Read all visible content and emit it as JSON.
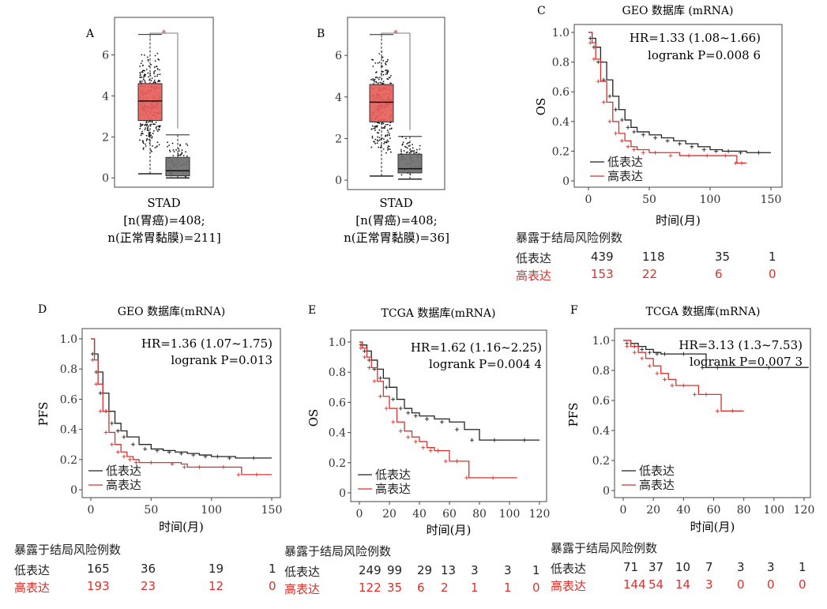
{
  "colors": {
    "tumor": "#e8605c",
    "normal": "#6e6e6e",
    "low": "#222222",
    "high": "#d9312b"
  },
  "chart_data": [
    {
      "panel": "A",
      "type": "box",
      "categories": [
        "",
        ""
      ],
      "series": [
        {
          "values": {
            "whisker_low": 0.2,
            "q1": 2.8,
            "median": 3.75,
            "q3": 4.6,
            "whisker_high": 7.0
          }
        },
        {
          "values": {
            "whisker_low": 0.0,
            "q1": 0.1,
            "median": 0.35,
            "q3": 1.0,
            "whisker_high": 2.1
          }
        }
      ],
      "significance": "*",
      "yticks": [
        "0",
        "2",
        "4",
        "6"
      ],
      "ylim": [
        -0.3,
        7.6
      ],
      "xlabel": "STAD",
      "caption_lines": [
        "[n(胃癌)=408;",
        "n(正常胃黏膜)=211]"
      ]
    },
    {
      "panel": "B",
      "type": "box",
      "categories": [
        "",
        ""
      ],
      "series": [
        {
          "values": {
            "whisker_low": 0.2,
            "q1": 2.8,
            "median": 3.75,
            "q3": 4.6,
            "whisker_high": 7.0
          }
        },
        {
          "values": {
            "whisker_low": 0.05,
            "q1": 0.35,
            "median": 0.55,
            "q3": 1.25,
            "whisker_high": 2.1
          }
        }
      ],
      "significance": "*",
      "yticks": [
        "0",
        "2",
        "4",
        "6"
      ],
      "ylim": [
        -0.3,
        7.6
      ],
      "xlabel": "STAD",
      "caption_lines": [
        "[n(胃癌)=408;",
        "n(正常胃黏膜)=36]"
      ]
    },
    {
      "panel": "C",
      "type": "line",
      "title": "GEO 数据库 (mRNA)",
      "ylabel": "OS",
      "xlabel": "时间(月)",
      "xticks": [
        "0",
        "50",
        "100",
        "150"
      ],
      "yticks": [
        "0",
        "0.2",
        "0.4",
        "0.6",
        "0.8",
        "1.0"
      ],
      "xlim": [
        0,
        150
      ],
      "ylim": [
        0,
        1
      ],
      "hr_text": "HR=1.33 (1.08~1.66)",
      "p_text": "logrank P=0.008 6",
      "series": [
        {
          "name": "低表达",
          "points": [
            [
              0,
              1
            ],
            [
              3,
              0.96
            ],
            [
              6,
              0.9
            ],
            [
              10,
              0.8
            ],
            [
              15,
              0.68
            ],
            [
              20,
              0.57
            ],
            [
              25,
              0.48
            ],
            [
              30,
              0.41
            ],
            [
              35,
              0.36
            ],
            [
              40,
              0.33
            ],
            [
              50,
              0.31
            ],
            [
              60,
              0.29
            ],
            [
              70,
              0.27
            ],
            [
              80,
              0.25
            ],
            [
              90,
              0.23
            ],
            [
              100,
              0.21
            ],
            [
              110,
              0.2
            ],
            [
              120,
              0.2
            ],
            [
              130,
              0.19
            ],
            [
              150,
              0.19
            ]
          ]
        },
        {
          "name": "高表达",
          "points": [
            [
              0,
              1
            ],
            [
              3,
              0.93
            ],
            [
              6,
              0.82
            ],
            [
              10,
              0.67
            ],
            [
              15,
              0.53
            ],
            [
              20,
              0.4
            ],
            [
              25,
              0.32
            ],
            [
              30,
              0.27
            ],
            [
              35,
              0.23
            ],
            [
              40,
              0.21
            ],
            [
              50,
              0.19
            ],
            [
              60,
              0.19
            ],
            [
              75,
              0.17
            ],
            [
              90,
              0.17
            ],
            [
              105,
              0.17
            ],
            [
              120,
              0.17
            ],
            [
              122,
              0.12
            ],
            [
              130,
              0.12
            ]
          ]
        }
      ],
      "risk_title": "暴露于结局风险例数",
      "risk_rows": [
        {
          "label": "低表达",
          "values": [
            "439",
            "118",
            "35",
            "1"
          ]
        },
        {
          "label": "高表达",
          "values": [
            "153",
            "22",
            "6",
            "0"
          ]
        }
      ]
    },
    {
      "panel": "D",
      "type": "line",
      "title": "GEO 数据库(mRNA)",
      "ylabel": "PFS",
      "xlabel": "时间(月)",
      "xticks": [
        "0",
        "50",
        "100",
        "150"
      ],
      "yticks": [
        "0",
        "0.2",
        "0.4",
        "0.6",
        "0.8",
        "1.0"
      ],
      "xlim": [
        0,
        150
      ],
      "ylim": [
        0,
        1
      ],
      "hr_text": "HR=1.36 (1.07~1.75)",
      "p_text": "logrank P=0.013",
      "series": [
        {
          "name": "低表达",
          "points": [
            [
              0,
              1
            ],
            [
              3,
              0.9
            ],
            [
              6,
              0.78
            ],
            [
              10,
              0.64
            ],
            [
              15,
              0.52
            ],
            [
              20,
              0.44
            ],
            [
              25,
              0.39
            ],
            [
              30,
              0.35
            ],
            [
              40,
              0.3
            ],
            [
              50,
              0.27
            ],
            [
              60,
              0.26
            ],
            [
              70,
              0.25
            ],
            [
              80,
              0.24
            ],
            [
              90,
              0.23
            ],
            [
              100,
              0.22
            ],
            [
              110,
              0.22
            ],
            [
              120,
              0.21
            ],
            [
              150,
              0.21
            ]
          ]
        },
        {
          "name": "高表达",
          "points": [
            [
              0,
              1
            ],
            [
              3,
              0.86
            ],
            [
              6,
              0.7
            ],
            [
              10,
              0.52
            ],
            [
              15,
              0.38
            ],
            [
              20,
              0.3
            ],
            [
              25,
              0.25
            ],
            [
              30,
              0.22
            ],
            [
              35,
              0.2
            ],
            [
              40,
              0.18
            ],
            [
              60,
              0.18
            ],
            [
              75,
              0.17
            ],
            [
              80,
              0.15
            ],
            [
              100,
              0.15
            ],
            [
              120,
              0.15
            ],
            [
              125,
              0.1
            ],
            [
              150,
              0.1
            ]
          ]
        }
      ],
      "risk_title": "暴露于结局风险例数",
      "risk_rows": [
        {
          "label": "低表达",
          "values": [
            "165",
            "36",
            "19",
            "1"
          ]
        },
        {
          "label": "高表达",
          "values": [
            "193",
            "23",
            "12",
            "0"
          ]
        }
      ]
    },
    {
      "panel": "E",
      "type": "line",
      "title": "TCGA 数据库(mRNA)",
      "ylabel": "OS",
      "xlabel": "时间(月)",
      "xticks": [
        "0",
        "20",
        "40",
        "60",
        "80",
        "100",
        "120"
      ],
      "yticks": [
        "0",
        "0.2",
        "0.4",
        "0.6",
        "0.8",
        "1.0"
      ],
      "xlim": [
        0,
        120
      ],
      "ylim": [
        0,
        1
      ],
      "hr_text": "HR=1.62 (1.16~2.25)",
      "p_text": "logrank P=0.004 4",
      "series": [
        {
          "name": "低表达",
          "points": [
            [
              0,
              1
            ],
            [
              2,
              0.98
            ],
            [
              5,
              0.94
            ],
            [
              8,
              0.88
            ],
            [
              12,
              0.82
            ],
            [
              16,
              0.76
            ],
            [
              20,
              0.7
            ],
            [
              25,
              0.62
            ],
            [
              30,
              0.56
            ],
            [
              35,
              0.53
            ],
            [
              40,
              0.51
            ],
            [
              50,
              0.49
            ],
            [
              60,
              0.47
            ],
            [
              70,
              0.42
            ],
            [
              80,
              0.35
            ],
            [
              100,
              0.35
            ],
            [
              120,
              0.35
            ]
          ]
        },
        {
          "name": "高表达",
          "points": [
            [
              0,
              1
            ],
            [
              2,
              0.96
            ],
            [
              5,
              0.9
            ],
            [
              8,
              0.83
            ],
            [
              12,
              0.74
            ],
            [
              16,
              0.64
            ],
            [
              20,
              0.56
            ],
            [
              25,
              0.47
            ],
            [
              30,
              0.41
            ],
            [
              35,
              0.37
            ],
            [
              40,
              0.34
            ],
            [
              45,
              0.3
            ],
            [
              50,
              0.28
            ],
            [
              55,
              0.28
            ],
            [
              60,
              0.21
            ],
            [
              70,
              0.21
            ],
            [
              73,
              0.1
            ],
            [
              105,
              0.1
            ]
          ]
        }
      ],
      "risk_title": "暴露于结局风险例数",
      "risk_rows": [
        {
          "label": "低表达",
          "values": [
            "249",
            "99",
            "29",
            "13",
            "3",
            "3",
            "1"
          ]
        },
        {
          "label": "高表达",
          "values": [
            "122",
            "35",
            "6",
            "2",
            "1",
            "1",
            "0"
          ]
        }
      ]
    },
    {
      "panel": "F",
      "type": "line",
      "title": "TCGA 数据库(mRNA)",
      "ylabel": "PFS",
      "xlabel": "时间(月)",
      "xticks": [
        "0",
        "20",
        "40",
        "60",
        "80",
        "100",
        "120"
      ],
      "yticks": [
        "0",
        "0.2",
        "0.4",
        "0.6",
        "0.8",
        "1.0"
      ],
      "xlim": [
        0,
        120
      ],
      "ylim": [
        0,
        1
      ],
      "hr_text": "HR=3.13 (1.3~7.53)",
      "p_text": "logrank P=0.007 3",
      "series": [
        {
          "name": "低表达",
          "points": [
            [
              0,
              1
            ],
            [
              5,
              0.98
            ],
            [
              10,
              0.96
            ],
            [
              15,
              0.94
            ],
            [
              20,
              0.92
            ],
            [
              25,
              0.91
            ],
            [
              30,
              0.91
            ],
            [
              50,
              0.91
            ],
            [
              55,
              0.82
            ],
            [
              70,
              0.82
            ],
            [
              123,
              0.82
            ]
          ]
        },
        {
          "name": "高表达",
          "points": [
            [
              0,
              1
            ],
            [
              5,
              0.96
            ],
            [
              10,
              0.92
            ],
            [
              15,
              0.88
            ],
            [
              20,
              0.83
            ],
            [
              25,
              0.78
            ],
            [
              30,
              0.74
            ],
            [
              35,
              0.7
            ],
            [
              45,
              0.7
            ],
            [
              50,
              0.64
            ],
            [
              60,
              0.64
            ],
            [
              65,
              0.53
            ],
            [
              80,
              0.53
            ]
          ]
        }
      ],
      "risk_title": "暴露于结局风险例数",
      "risk_rows": [
        {
          "label": "低表达",
          "values": [
            "71",
            "37",
            "10",
            "7",
            "3",
            "3",
            "1"
          ]
        },
        {
          "label": "高表达",
          "values": [
            "144",
            "54",
            "14",
            "3",
            "0",
            "0",
            "0"
          ]
        }
      ]
    }
  ]
}
